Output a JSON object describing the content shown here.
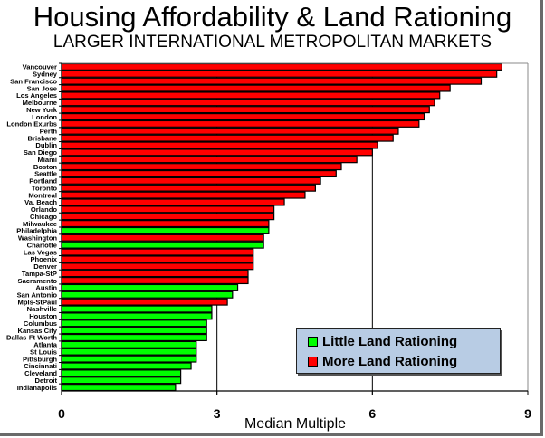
{
  "chart_data": {
    "type": "bar",
    "orientation": "horizontal",
    "title": "Housing Affordability & Land Rationing",
    "subtitle": "LARGER INTERNATIONAL METROPOLITAN MARKETS",
    "xlabel": "Median Multiple",
    "ylabel": "",
    "xlim": [
      0,
      9
    ],
    "xticks": [
      "0",
      "3",
      "6",
      "9"
    ],
    "grid": "vertical lines at 3 and 6",
    "legend_position": "bottom-right",
    "legend": [
      {
        "key": "little",
        "label": "Little Land Rationing",
        "color": "#00ff00"
      },
      {
        "key": "more",
        "label": "More Land Rationing",
        "color": "#ff0000"
      }
    ],
    "categories": [
      "Vancouver",
      "Sydney",
      "San Francisco",
      "San Jose",
      "Los Angeles",
      "Melbourne",
      "New York",
      "London",
      "London Exurbs",
      "Perth",
      "Brisbane",
      "Dublin",
      "San Diego",
      "Miami",
      "Boston",
      "Seattle",
      "Portland",
      "Toronto",
      "Montreal",
      "Va. Beach",
      "Orlando",
      "Chicago",
      "Milwaukee",
      "Philadelphia",
      "Washington",
      "Charlotte",
      "Las Vegas",
      "Phoenix",
      "Denver",
      "Tampa-StP",
      "Sacramento",
      "Austin",
      "San Antonio",
      "Mpls-StPaul",
      "Nashville",
      "Houston",
      "Columbus",
      "Kansas City",
      "Dallas-Ft Worth",
      "Atlanta",
      "St Louis",
      "Pittsburgh",
      "Cincinnati",
      "Cleveland",
      "Detroit",
      "Indianapolis"
    ],
    "values": [
      8.5,
      8.4,
      8.1,
      7.5,
      7.3,
      7.2,
      7.1,
      7.0,
      6.9,
      6.5,
      6.4,
      6.1,
      6.0,
      5.7,
      5.4,
      5.3,
      5.0,
      4.9,
      4.7,
      4.3,
      4.1,
      4.1,
      4.0,
      4.0,
      3.9,
      3.9,
      3.7,
      3.7,
      3.7,
      3.6,
      3.6,
      3.4,
      3.3,
      3.2,
      2.9,
      2.9,
      2.8,
      2.8,
      2.8,
      2.6,
      2.6,
      2.6,
      2.5,
      2.3,
      2.3,
      2.2
    ],
    "groups": [
      "more",
      "more",
      "more",
      "more",
      "more",
      "more",
      "more",
      "more",
      "more",
      "more",
      "more",
      "more",
      "more",
      "more",
      "more",
      "more",
      "more",
      "more",
      "more",
      "more",
      "more",
      "more",
      "more",
      "little",
      "more",
      "little",
      "more",
      "more",
      "more",
      "more",
      "more",
      "little",
      "little",
      "more",
      "little",
      "little",
      "little",
      "little",
      "little",
      "little",
      "little",
      "little",
      "little",
      "little",
      "little",
      "little"
    ]
  }
}
